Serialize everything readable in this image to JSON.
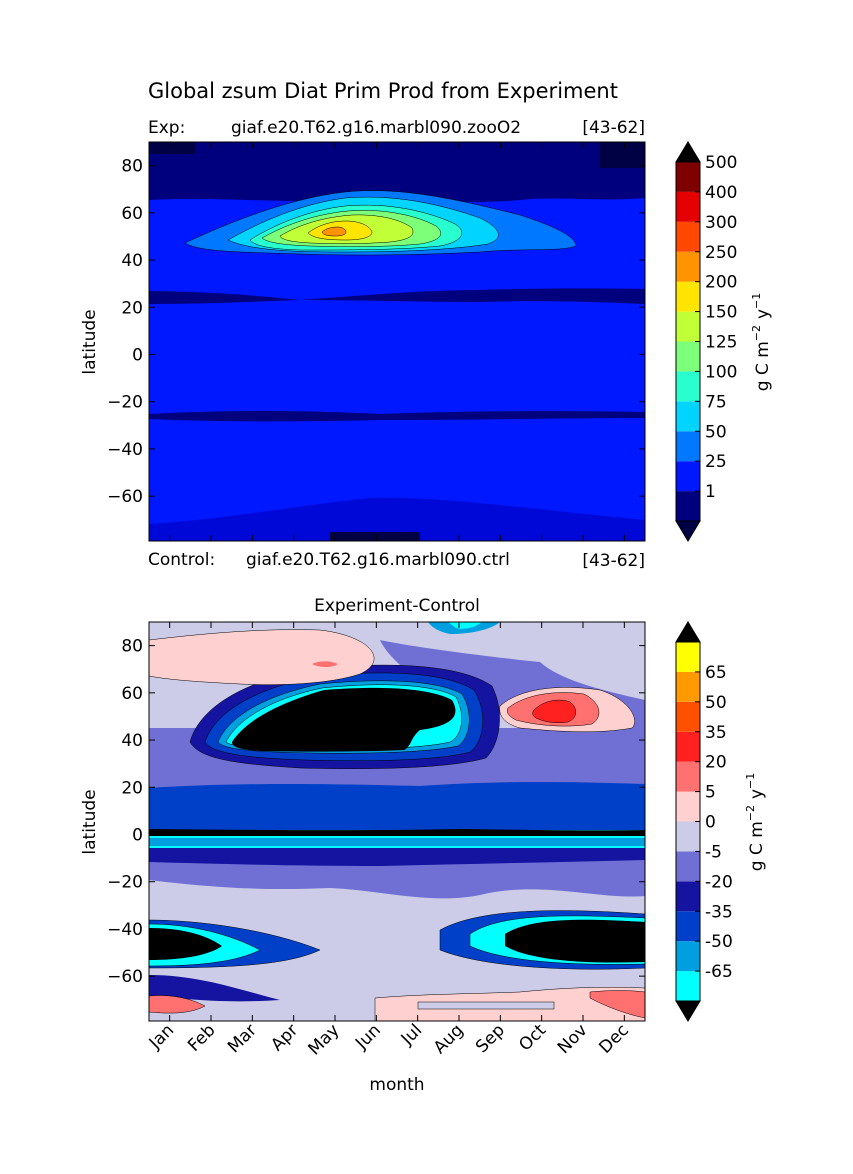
{
  "figure": {
    "title": "Global zsum Diat Prim Prod from Experiment",
    "exp_label": "Exp:",
    "exp_case": "giaf.e20.T62.g16.marbl090.zooO2",
    "exp_years": "[43-62]",
    "control_label": "Control:",
    "control_case": "giaf.e20.T62.g16.marbl090.ctrl",
    "control_years": "[43-62]"
  },
  "chart_data": [
    {
      "type": "heatmap",
      "title": "",
      "xlabel": "",
      "ylabel": "latitude",
      "xlim": [
        0,
        12
      ],
      "ylim": [
        -79,
        90
      ],
      "x_ticks": [
        0.5,
        1.5,
        2.5,
        3.5,
        4.5,
        5.5,
        6.5,
        7.5,
        8.5,
        9.5,
        10.5,
        11.5
      ],
      "y_ticks": [
        -60,
        -40,
        -20,
        0,
        20,
        40,
        60,
        80
      ],
      "y_tick_labels": [
        "−60",
        "−40",
        "−20",
        "0",
        "20",
        "40",
        "60",
        "80"
      ],
      "colorbar": {
        "label_main": "g C m",
        "label_exp1": "−2",
        "label_mid": "y",
        "label_exp2": "−1",
        "extend": "both",
        "under_color": "#000044",
        "over_color": "#000000",
        "levels": [
          1,
          25,
          50,
          75,
          100,
          125,
          150,
          200,
          250,
          300,
          400,
          500
        ],
        "tick_labels": [
          "1",
          "25",
          "50",
          "75",
          "100",
          "125",
          "150",
          "200",
          "250",
          "300",
          "400",
          "500"
        ],
        "colors": [
          "#00007f",
          "#0018ff",
          "#0078ff",
          "#00d4ff",
          "#29ffce",
          "#7dff7a",
          "#c1ff36",
          "#ffe500",
          "#ff9400",
          "#ff4800",
          "#e40000",
          "#7f0000"
        ]
      },
      "features": [
        {
          "kind": "background",
          "value": "1-25",
          "color": "#0018ff"
        },
        {
          "kind": "band",
          "lat": [
            62,
            90
          ],
          "value": "<25",
          "color": "#00007f"
        },
        {
          "kind": "band",
          "lat": [
            21,
            26
          ],
          "value": "<1",
          "color": "#00007f"
        },
        {
          "kind": "band",
          "lat": [
            -27,
            -24
          ],
          "value": "<1",
          "color": "#00007f"
        },
        {
          "kind": "blob",
          "month": [
            0.7,
            8.8
          ],
          "lat": [
            41,
            64
          ],
          "value": "25-50",
          "color": "#0078ff"
        },
        {
          "kind": "blob",
          "month": [
            2.5,
            7.8
          ],
          "lat": [
            43,
            62
          ],
          "value": "75-100",
          "color": "#00d4ff"
        },
        {
          "kind": "blob",
          "month": [
            3.2,
            5.8
          ],
          "lat": [
            45,
            58
          ],
          "value": "150-200",
          "color": "#c1ff36"
        },
        {
          "kind": "peak",
          "month": 4.6,
          "lat": 52,
          "value": "200-250",
          "color": "#ffe500"
        }
      ]
    },
    {
      "type": "heatmap",
      "title": "Experiment-Control",
      "xlabel": "month",
      "ylabel": "latitude",
      "xlim": [
        0,
        12
      ],
      "ylim": [
        -79,
        90
      ],
      "categories": [
        "Jan",
        "Feb",
        "Mar",
        "Apr",
        "May",
        "Jun",
        "Jul",
        "Aug",
        "Sep",
        "Oct",
        "Nov",
        "Dec"
      ],
      "x_ticks": [
        0.5,
        1.5,
        2.5,
        3.5,
        4.5,
        5.5,
        6.5,
        7.5,
        8.5,
        9.5,
        10.5,
        11.5
      ],
      "y_ticks": [
        -60,
        -40,
        -20,
        0,
        20,
        40,
        60,
        80
      ],
      "y_tick_labels": [
        "−60",
        "−40",
        "−20",
        "0",
        "20",
        "40",
        "60",
        "80"
      ],
      "colorbar": {
        "label_main": "g C m",
        "label_exp1": "−2",
        "label_mid": "y",
        "label_exp2": "−1",
        "extend": "both",
        "under_color": "#000000",
        "over_color": "#000000",
        "levels": [
          -65,
          -50,
          -35,
          -20,
          -5,
          0,
          5,
          20,
          35,
          50,
          65
        ],
        "tick_labels": [
          "-65",
          "-50",
          "-35",
          "-20",
          "-5",
          "0",
          "5",
          "20",
          "35",
          "50",
          "65"
        ],
        "colors": [
          "#00ffff",
          "#00a0e0",
          "#0040c8",
          "#1414a0",
          "#7070d4",
          "#cccce8",
          "#ffd0d0",
          "#ff7070",
          "#ff2020",
          "#ff5000",
          "#ff9900",
          "#ffff00"
        ]
      },
      "features": [
        {
          "kind": "background",
          "value": "-5-0",
          "color": "#cccce8"
        },
        {
          "kind": "band",
          "lat": [
            -22,
            44
          ],
          "value": "-20 to -5",
          "color": "#7070d4"
        },
        {
          "kind": "band",
          "lat": [
            -4,
            19
          ],
          "value": "-35 to -20",
          "color": "#0040c8"
        },
        {
          "kind": "band",
          "lat": [
            -3,
            1
          ],
          "value": "< -65",
          "color": "#000000"
        },
        {
          "kind": "blob",
          "month": [
            1.3,
            8.0
          ],
          "lat": [
            32,
            67
          ],
          "value": "< -65",
          "color": "#000000"
        },
        {
          "kind": "blob",
          "month": [
            0,
            1.6
          ],
          "lat": [
            -55,
            -38
          ],
          "value": "< -65",
          "color": "#000000"
        },
        {
          "kind": "blob",
          "month": [
            8.2,
            12
          ],
          "lat": [
            -55,
            -37
          ],
          "value": "< -65",
          "color": "#000000"
        },
        {
          "kind": "blob",
          "month": [
            7.5,
            10.2
          ],
          "lat": [
            44,
            62
          ],
          "value": "0-35",
          "color": "#ff2020"
        },
        {
          "kind": "blob",
          "month": [
            0.4,
            4.2
          ],
          "lat": [
            66,
            85
          ],
          "value": "0-5",
          "color": "#ffd0d0"
        },
        {
          "kind": "blob",
          "month": [
            5.4,
            12
          ],
          "lat": [
            -79,
            -65
          ],
          "value": "0-5",
          "color": "#ffd0d0"
        }
      ]
    }
  ]
}
